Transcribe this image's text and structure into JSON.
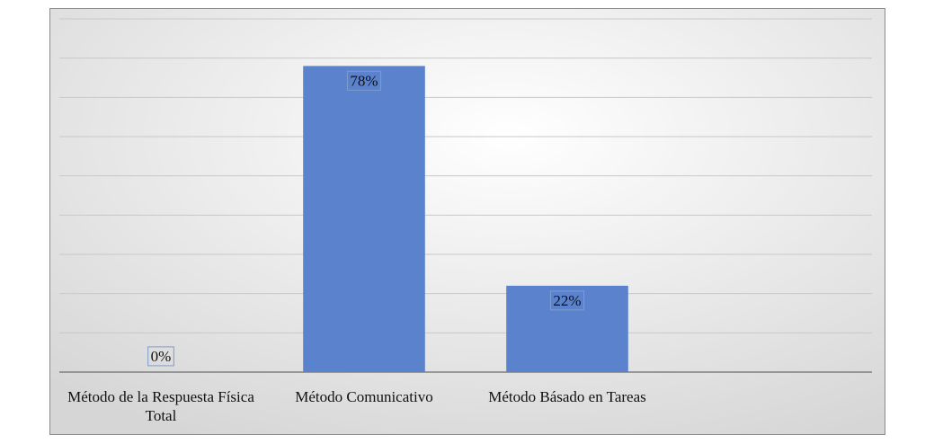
{
  "chart_data": {
    "type": "bar",
    "categories": [
      "Método de la Respuesta Física Total",
      "Método Comunicativo",
      "Método Básado en Tareas",
      null
    ],
    "values": [
      0,
      78,
      22,
      null
    ],
    "value_labels": [
      "0%",
      "78%",
      "22%",
      null
    ],
    "color": "#5b82cc",
    "ylim": [
      0,
      90
    ],
    "yticks": [
      0,
      10,
      20,
      30,
      40,
      50,
      60,
      70,
      80,
      90
    ],
    "grid": true
  }
}
